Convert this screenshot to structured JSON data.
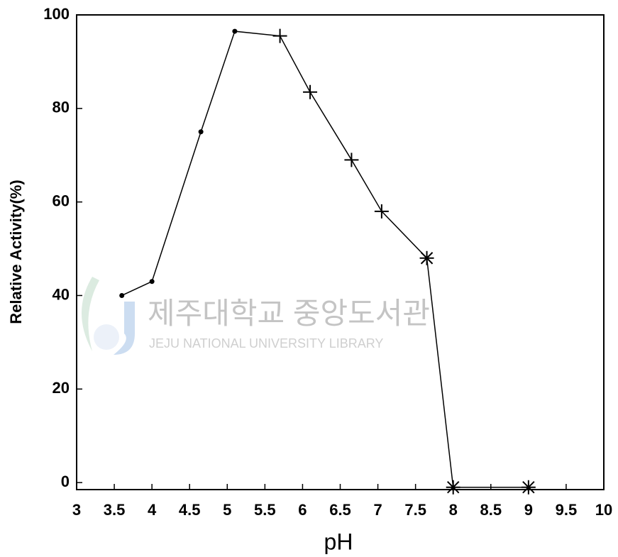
{
  "chart_data": {
    "type": "line",
    "x_label": "pH",
    "y_label": "Relative Activity(%)",
    "watermark": {
      "title": "제주대학교 중앙도서관",
      "subtitle": "JEJU NATIONAL UNIVERSITY LIBRARY"
    },
    "series": [
      {
        "color": "#000000",
        "x": [
          3.6,
          4,
          4.65,
          5.1,
          5.7,
          6.1,
          6.65,
          7.05,
          7.65,
          8,
          9
        ],
        "values": [
          40,
          43,
          75,
          96.5,
          95.5,
          83.5,
          69,
          58,
          48,
          -1,
          -1
        ],
        "markers": [
          "dot",
          "dot",
          "dot",
          "dot",
          "plus",
          "plus",
          "plus",
          "plus",
          "asterisk",
          "asterisk",
          "asterisk"
        ]
      }
    ],
    "xlim": [
      3,
      10
    ],
    "xticks": [
      3,
      3.5,
      4,
      4.5,
      5,
      5.5,
      6,
      6.5,
      7,
      7.5,
      8,
      8.5,
      9,
      9.5,
      10
    ],
    "ylim": [
      -1.5,
      100
    ],
    "yticks": [
      0,
      20,
      40,
      60,
      80,
      100
    ],
    "grid": false
  }
}
